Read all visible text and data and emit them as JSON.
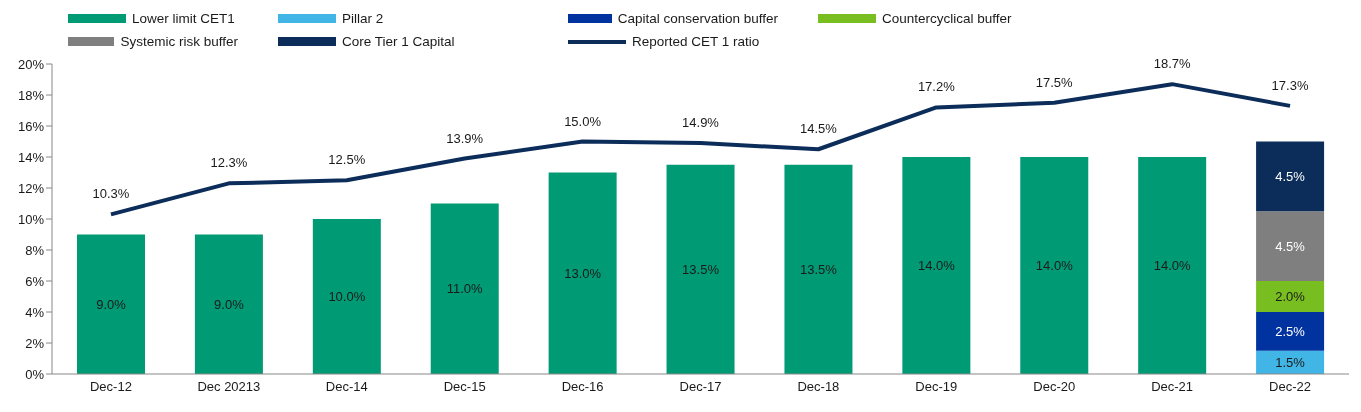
{
  "chart_data": {
    "type": "bar",
    "stacked": true,
    "legend": "top",
    "categories": [
      "Dec-12",
      "Dec 20213",
      "Dec-14",
      "Dec-15",
      "Dec-16",
      "Dec-17",
      "Dec-18",
      "Dec-19",
      "Dec-20",
      "Dec-21",
      "Dec-22"
    ],
    "ylim": [
      0,
      20
    ],
    "yticks": [
      {
        "value": 0,
        "label": "0%"
      },
      {
        "value": 2,
        "label": "2%"
      },
      {
        "value": 4,
        "label": "4%"
      },
      {
        "value": 6,
        "label": "6%"
      },
      {
        "value": 8,
        "label": "8%"
      },
      {
        "value": 10,
        "label": "10%"
      },
      {
        "value": 12,
        "label": "12%"
      },
      {
        "value": 14,
        "label": "14%"
      },
      {
        "value": 16,
        "label": "16%"
      },
      {
        "value": 18,
        "label": "18%"
      },
      {
        "value": 20,
        "label": "20%"
      }
    ],
    "series": [
      {
        "name": "Lower limit CET1",
        "color": "#009a74",
        "values": [
          9,
          9,
          10,
          11,
          13,
          13.5,
          13.5,
          14,
          14,
          14,
          null
        ],
        "value_labels": [
          "9.0%",
          "9.0%",
          "10.0%",
          "11.0%",
          "13.0%",
          "13.5%",
          "13.5%",
          "14.0%",
          "14.0%",
          "14.0%",
          null
        ]
      },
      {
        "name": "Pillar 2",
        "color": "#41b6e6",
        "values": [
          null,
          null,
          null,
          null,
          null,
          null,
          null,
          null,
          null,
          null,
          1.5
        ],
        "value_labels": [
          null,
          null,
          null,
          null,
          null,
          null,
          null,
          null,
          null,
          null,
          "1.5%"
        ]
      },
      {
        "name": "Capital conservation buffer",
        "color": "#0033a0",
        "values": [
          null,
          null,
          null,
          null,
          null,
          null,
          null,
          null,
          null,
          null,
          2.5
        ],
        "value_labels": [
          null,
          null,
          null,
          null,
          null,
          null,
          null,
          null,
          null,
          null,
          "2.5%"
        ]
      },
      {
        "name": "Countercyclical buffer",
        "color": "#78be20",
        "values": [
          null,
          null,
          null,
          null,
          null,
          null,
          null,
          null,
          null,
          null,
          2.0
        ],
        "value_labels": [
          null,
          null,
          null,
          null,
          null,
          null,
          null,
          null,
          null,
          null,
          "2.0%"
        ]
      },
      {
        "name": "Systemic risk buffer",
        "color": "#7f7f7f",
        "values": [
          null,
          null,
          null,
          null,
          null,
          null,
          null,
          null,
          null,
          null,
          4.5
        ],
        "value_labels": [
          null,
          null,
          null,
          null,
          null,
          null,
          null,
          null,
          null,
          null,
          "4.5%"
        ]
      },
      {
        "name": "Core Tier 1 Capital",
        "color": "#0c2d5a",
        "values": [
          null,
          null,
          null,
          null,
          null,
          null,
          null,
          null,
          null,
          null,
          4.5
        ],
        "value_labels": [
          null,
          null,
          null,
          null,
          null,
          null,
          null,
          null,
          null,
          null,
          "4.5%"
        ]
      },
      {
        "name": "Reported CET 1 ratio",
        "type": "line",
        "color": "#0c2d5a",
        "values": [
          10.3,
          12.3,
          12.5,
          13.9,
          15.0,
          14.9,
          14.5,
          17.2,
          17.5,
          18.7,
          17.3
        ],
        "value_labels": [
          "10.3%",
          "12.3%",
          "12.5%",
          "13.9%",
          "15.0%",
          "14.9%",
          "14.5%",
          "17.2%",
          "17.5%",
          "18.7%",
          "17.3%"
        ]
      }
    ]
  }
}
